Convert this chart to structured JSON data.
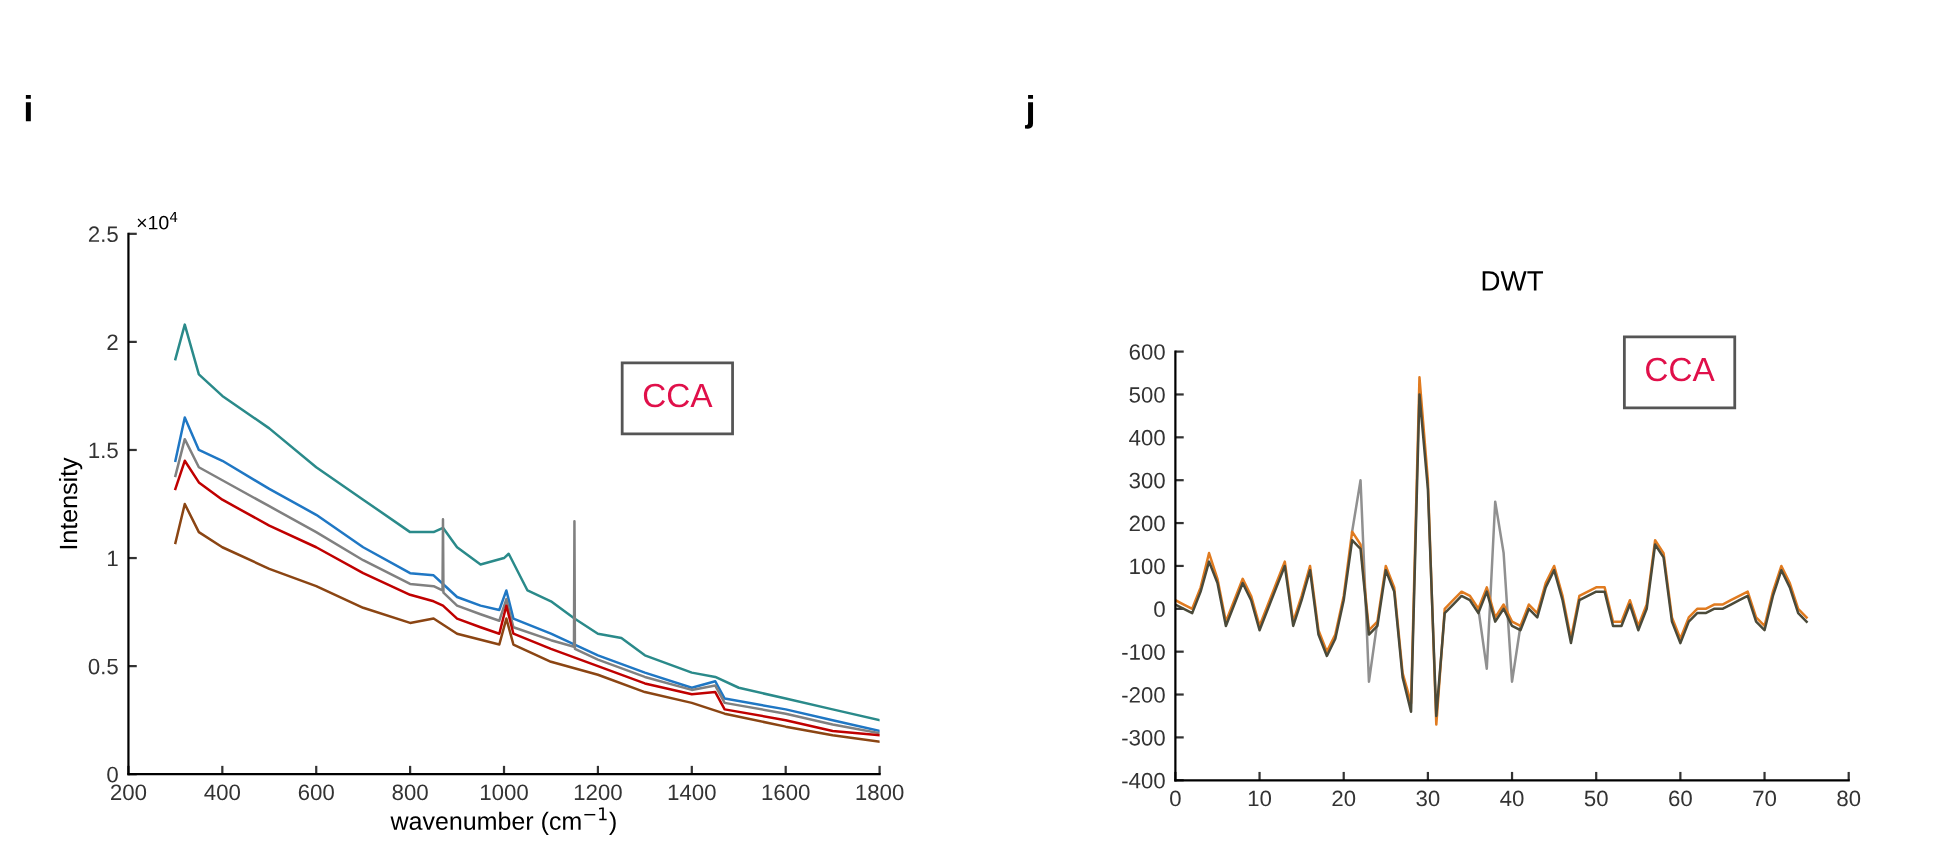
{
  "chart_data": [
    {
      "type": "line",
      "xlabel": "wavenumber (cm$^{−1}$)",
      "ylabel": "Intensity",
      "annotations": [
        "i",
        "×10$^{4}$",
        "CCA"
      ],
      "xlim": [
        200,
        1800
      ],
      "xticks": [
        200,
        400,
        600,
        800,
        1000,
        1200,
        1400,
        1600,
        1800
      ],
      "ylim": [
        0,
        2.5
      ],
      "yticks": [
        0,
        0.5,
        1,
        1.5,
        2,
        2.5
      ],
      "grid": false,
      "legend": false,
      "line_style": "solid",
      "marker": "none",
      "series": [
        {
          "color": "#2a8a8a",
          "x": [
            300,
            320,
            350,
            400,
            500,
            600,
            700,
            800,
            850,
            870,
            900,
            950,
            1000,
            1010,
            1050,
            1100,
            1150,
            1200,
            1250,
            1300,
            1400,
            1450,
            1500,
            1600,
            1700,
            1800
          ],
          "values": [
            1.92,
            2.08,
            1.85,
            1.75,
            1.6,
            1.42,
            1.27,
            1.12,
            1.12,
            1.14,
            1.05,
            0.97,
            1.0,
            1.02,
            0.85,
            0.8,
            0.72,
            0.65,
            0.63,
            0.55,
            0.47,
            0.45,
            0.4,
            0.35,
            0.3,
            0.25
          ]
        },
        {
          "color": "#1f77c4",
          "x": [
            300,
            320,
            350,
            400,
            500,
            600,
            700,
            800,
            850,
            870,
            900,
            950,
            990,
            1005,
            1020,
            1100,
            1200,
            1300,
            1400,
            1450,
            1470,
            1600,
            1700,
            1800
          ],
          "values": [
            1.45,
            1.65,
            1.5,
            1.45,
            1.32,
            1.2,
            1.05,
            0.93,
            0.92,
            0.88,
            0.82,
            0.78,
            0.76,
            0.85,
            0.72,
            0.65,
            0.55,
            0.47,
            0.4,
            0.43,
            0.35,
            0.3,
            0.25,
            0.2
          ]
        },
        {
          "color": "#808080",
          "x": [
            300,
            320,
            350,
            400,
            500,
            600,
            700,
            800,
            850,
            869,
            870,
            871,
            900,
            950,
            990,
            1005,
            1020,
            1100,
            1149,
            1150,
            1151,
            1200,
            1300,
            1400,
            1450,
            1470,
            1600,
            1700,
            1800
          ],
          "values": [
            1.38,
            1.55,
            1.42,
            1.36,
            1.24,
            1.12,
            0.99,
            0.88,
            0.87,
            0.85,
            1.18,
            0.84,
            0.78,
            0.74,
            0.71,
            0.81,
            0.68,
            0.62,
            0.59,
            1.17,
            0.58,
            0.53,
            0.45,
            0.39,
            0.41,
            0.33,
            0.28,
            0.23,
            0.19
          ]
        },
        {
          "color": "#c00000",
          "x": [
            300,
            320,
            350,
            400,
            500,
            600,
            700,
            800,
            850,
            870,
            900,
            950,
            990,
            1005,
            1020,
            1100,
            1200,
            1300,
            1400,
            1450,
            1470,
            1600,
            1700,
            1800
          ],
          "values": [
            1.32,
            1.45,
            1.35,
            1.27,
            1.15,
            1.05,
            0.93,
            0.83,
            0.8,
            0.78,
            0.72,
            0.68,
            0.65,
            0.78,
            0.65,
            0.58,
            0.5,
            0.42,
            0.37,
            0.38,
            0.3,
            0.25,
            0.2,
            0.18
          ]
        },
        {
          "color": "#8b4513",
          "x": [
            300,
            320,
            350,
            400,
            500,
            600,
            700,
            800,
            850,
            900,
            990,
            1005,
            1020,
            1100,
            1200,
            1300,
            1400,
            1470,
            1600,
            1700,
            1800
          ],
          "values": [
            1.07,
            1.25,
            1.12,
            1.05,
            0.95,
            0.87,
            0.77,
            0.7,
            0.72,
            0.65,
            0.6,
            0.72,
            0.6,
            0.52,
            0.46,
            0.38,
            0.33,
            0.28,
            0.22,
            0.18,
            0.15
          ]
        }
      ]
    },
    {
      "type": "line",
      "title": "DWT",
      "annotations": [
        "j",
        "CCA"
      ],
      "xlim": [
        0,
        80
      ],
      "xticks": [
        0,
        10,
        20,
        30,
        40,
        50,
        60,
        70,
        80
      ],
      "ylim": [
        -400,
        600
      ],
      "yticks": [
        -400,
        -300,
        -200,
        -100,
        0,
        100,
        200,
        300,
        400,
        500,
        600
      ],
      "grid": false,
      "legend": false,
      "line_style": "solid",
      "marker": "none",
      "series": [
        {
          "color": "#909090",
          "x": [
            21,
            22,
            23,
            24,
            25,
            36,
            37,
            38,
            39,
            40,
            41
          ],
          "values": [
            180,
            300,
            -170,
            -30,
            null,
            0,
            -140,
            250,
            130,
            -170,
            -40
          ]
        },
        {
          "color": "#e07b20",
          "x": [
            0,
            1,
            2,
            3,
            4,
            5,
            6,
            7,
            8,
            9,
            10,
            11,
            12,
            13,
            14,
            15,
            16,
            17,
            18,
            19,
            20,
            21,
            22,
            23,
            24,
            25,
            26,
            27,
            28,
            29,
            30,
            31,
            32,
            33,
            34,
            35,
            36,
            37,
            38,
            39,
            40,
            41,
            42,
            43,
            44,
            45,
            46,
            47,
            48,
            49,
            50,
            51,
            52,
            53,
            54,
            55,
            56,
            57,
            58,
            59,
            60,
            61,
            62,
            63,
            64,
            65,
            66,
            67,
            68,
            69,
            70,
            71,
            72,
            73,
            74,
            75
          ],
          "values": [
            20,
            10,
            0,
            50,
            130,
            70,
            -30,
            20,
            70,
            30,
            -40,
            10,
            60,
            110,
            -30,
            30,
            100,
            -50,
            -100,
            -60,
            30,
            180,
            150,
            -50,
            -30,
            100,
            50,
            -150,
            -220,
            540,
            300,
            -270,
            0,
            20,
            40,
            30,
            0,
            50,
            -20,
            10,
            -30,
            -40,
            10,
            -10,
            60,
            100,
            30,
            -70,
            30,
            40,
            50,
            50,
            -30,
            -30,
            20,
            -40,
            10,
            160,
            130,
            -20,
            -70,
            -20,
            0,
            0,
            10,
            10,
            20,
            30,
            40,
            -20,
            -40,
            40,
            100,
            60,
            0,
            -20
          ]
        },
        {
          "color": "#4a4a3a",
          "x": [
            0,
            1,
            2,
            3,
            4,
            5,
            6,
            7,
            8,
            9,
            10,
            11,
            12,
            13,
            14,
            15,
            16,
            17,
            18,
            19,
            20,
            21,
            22,
            23,
            24,
            25,
            26,
            27,
            28,
            29,
            30,
            31,
            32,
            33,
            34,
            35,
            36,
            37,
            38,
            39,
            40,
            41,
            42,
            43,
            44,
            45,
            46,
            47,
            48,
            49,
            50,
            51,
            52,
            53,
            54,
            55,
            56,
            57,
            58,
            59,
            60,
            61,
            62,
            63,
            64,
            65,
            66,
            67,
            68,
            69,
            70,
            71,
            72,
            73,
            74,
            75
          ],
          "values": [
            10,
            0,
            -10,
            40,
            110,
            60,
            -40,
            10,
            60,
            20,
            -50,
            0,
            50,
            100,
            -40,
            20,
            90,
            -60,
            -110,
            -70,
            20,
            160,
            140,
            -60,
            -40,
            90,
            40,
            -160,
            -240,
            500,
            280,
            -250,
            -10,
            10,
            30,
            20,
            -10,
            40,
            -30,
            0,
            -40,
            -50,
            0,
            -20,
            50,
            90,
            20,
            -80,
            20,
            30,
            40,
            40,
            -40,
            -40,
            10,
            -50,
            0,
            150,
            120,
            -30,
            -80,
            -30,
            -10,
            -10,
            0,
            0,
            10,
            20,
            30,
            -30,
            -50,
            30,
            90,
            50,
            -10,
            -30
          ]
        }
      ]
    }
  ]
}
